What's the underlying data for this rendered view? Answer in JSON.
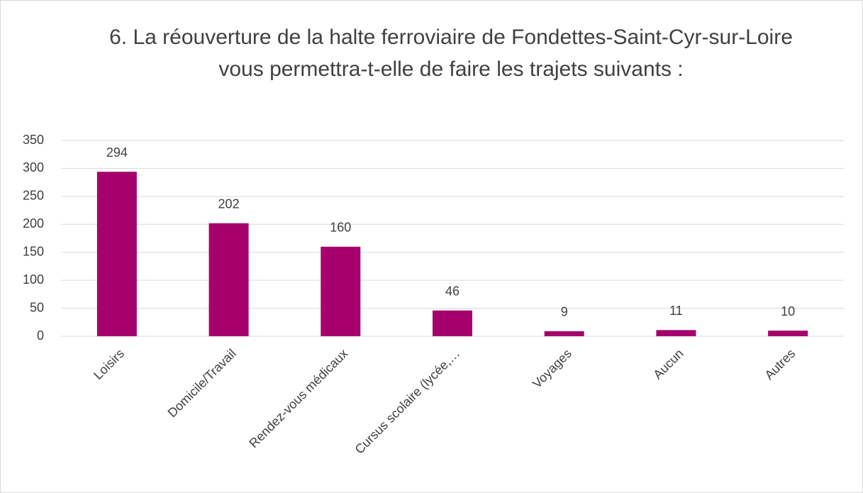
{
  "chart_data": {
    "type": "bar",
    "title": "6. La réouverture de la halte ferroviaire de Fondettes-Saint-Cyr-sur-Loire vous permettra-t-elle de faire les trajets suivants :",
    "categories": [
      "Loisirs",
      "Domicile/Travail",
      "Rendez-vous médicaux",
      "Cursus scolaire (lycée,…",
      "Voyages",
      "Aucun",
      "Autres"
    ],
    "values": [
      294,
      202,
      160,
      46,
      9,
      11,
      10
    ],
    "color": "#a5006b",
    "ylim": [
      0,
      350
    ],
    "yticks": [
      0,
      50,
      100,
      150,
      200,
      250,
      300,
      350
    ],
    "grid": true
  }
}
